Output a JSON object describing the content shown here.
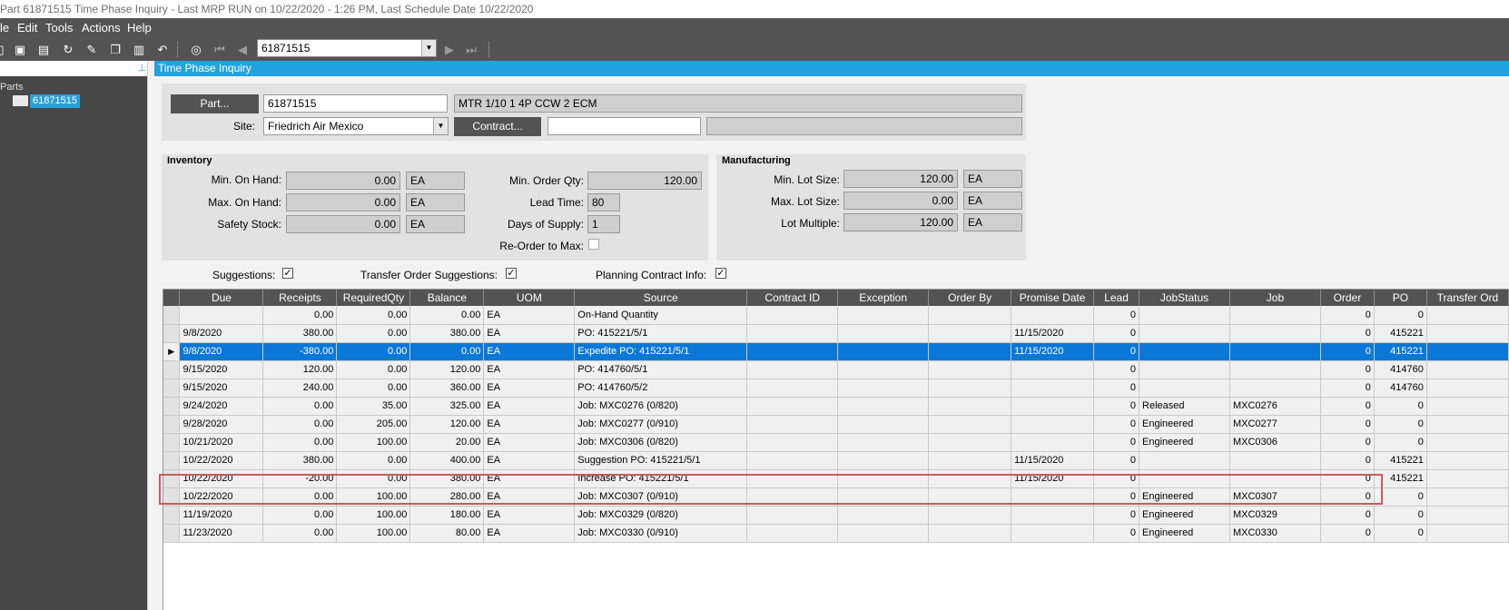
{
  "window": {
    "title": "Part 61871515 Time Phase Inquiry  - Last MRP RUN on 10/22/2020 - 1:26 PM, Last Schedule Date  10/22/2020"
  },
  "menu": [
    "le",
    "Edit",
    "Tools",
    "Actions",
    "Help"
  ],
  "toolbar": {
    "part_value": "61871515",
    "icons": [
      "doc-icon",
      "save-icon",
      "clipboard-icon",
      "refresh-icon",
      "broom-icon",
      "copy-icon",
      "paste-icon",
      "undo-icon",
      "binoculars-icon",
      "first-icon",
      "prev-icon",
      "next-icon",
      "last-icon"
    ]
  },
  "tree": {
    "root": "Parts",
    "node": "61871515"
  },
  "panel": {
    "title": "Time Phase Inquiry"
  },
  "header": {
    "part_button": "Part...",
    "part_value": "61871515",
    "part_desc": "MTR 1/10 1 4P CCW 2 ECM",
    "site_label": "Site:",
    "site_value": "Friedrich Air Mexico",
    "contract_button": "Contract...",
    "contract_value": "",
    "contract_desc": ""
  },
  "inventory": {
    "title": "Inventory",
    "min_on_hand_label": "Min. On Hand:",
    "min_on_hand": "0.00",
    "min_on_hand_uom": "EA",
    "max_on_hand_label": "Max. On Hand:",
    "max_on_hand": "0.00",
    "max_on_hand_uom": "EA",
    "safety_label": "Safety Stock:",
    "safety": "0.00",
    "safety_uom": "EA",
    "min_order_label": "Min. Order Qty:",
    "min_order": "120.00",
    "lead_label": "Lead Time:",
    "lead": "80",
    "days_label": "Days of Supply:",
    "days": "1",
    "reorder_label": "Re-Order to Max:",
    "reorder_checked": false
  },
  "manufacturing": {
    "title": "Manufacturing",
    "min_lot_label": "Min. Lot Size:",
    "min_lot": "120.00",
    "min_lot_uom": "EA",
    "max_lot_label": "Max. Lot Size:",
    "max_lot": "0.00",
    "max_lot_uom": "EA",
    "lot_mult_label": "Lot Multiple:",
    "lot_mult": "120.00",
    "lot_mult_uom": "EA"
  },
  "options": {
    "suggestions_label": "Suggestions:",
    "suggestions": true,
    "transfer_label": "Transfer Order Suggestions:",
    "transfer": true,
    "planning_label": "Planning Contract Info:",
    "planning": true
  },
  "grid": {
    "columns": [
      "Due",
      "Receipts",
      "RequiredQty",
      "Balance",
      "UOM",
      "Source",
      "Contract ID",
      "Exception",
      "Order By",
      "Promise Date",
      "Lead",
      "JobStatus",
      "Job",
      "Order",
      "PO",
      "Transfer Ord"
    ],
    "active_row": 2,
    "rows": [
      [
        "",
        "0.00",
        "0.00",
        "0.00",
        "EA",
        "On-Hand Quantity",
        "",
        "",
        "",
        "",
        "0",
        "",
        "",
        "0",
        "0",
        ""
      ],
      [
        "9/8/2020",
        "380.00",
        "0.00",
        "380.00",
        "EA",
        "PO: 415221/5/1",
        "",
        "",
        "",
        "11/15/2020",
        "0",
        "",
        "",
        "0",
        "415221",
        ""
      ],
      [
        "9/8/2020",
        "-380.00",
        "0.00",
        "0.00",
        "EA",
        "Expedite PO: 415221/5/1",
        "",
        "",
        "",
        "11/15/2020",
        "0",
        "",
        "",
        "0",
        "415221",
        ""
      ],
      [
        "9/15/2020",
        "120.00",
        "0.00",
        "120.00",
        "EA",
        "PO: 414760/5/1",
        "",
        "",
        "",
        "",
        "0",
        "",
        "",
        "0",
        "414760",
        ""
      ],
      [
        "9/15/2020",
        "240.00",
        "0.00",
        "360.00",
        "EA",
        "PO: 414760/5/2",
        "",
        "",
        "",
        "",
        "0",
        "",
        "",
        "0",
        "414760",
        ""
      ],
      [
        "9/24/2020",
        "0.00",
        "35.00",
        "325.00",
        "EA",
        "Job: MXC0276 (0/820)",
        "",
        "",
        "",
        "",
        "0",
        "Released",
        "MXC0276",
        "0",
        "0",
        ""
      ],
      [
        "9/28/2020",
        "0.00",
        "205.00",
        "120.00",
        "EA",
        "Job: MXC0277 (0/910)",
        "",
        "",
        "",
        "",
        "0",
        "Engineered",
        "MXC0277",
        "0",
        "0",
        ""
      ],
      [
        "10/21/2020",
        "0.00",
        "100.00",
        "20.00",
        "EA",
        "Job: MXC0306 (0/820)",
        "",
        "",
        "",
        "",
        "0",
        "Engineered",
        "MXC0306",
        "0",
        "0",
        ""
      ],
      [
        "10/22/2020",
        "380.00",
        "0.00",
        "400.00",
        "EA",
        "Suggestion PO: 415221/5/1",
        "",
        "",
        "",
        "11/15/2020",
        "0",
        "",
        "",
        "0",
        "415221",
        ""
      ],
      [
        "10/22/2020",
        "-20.00",
        "0.00",
        "380.00",
        "EA",
        "Increase PO: 415221/5/1",
        "",
        "",
        "",
        "11/15/2020",
        "0",
        "",
        "",
        "0",
        "415221",
        ""
      ],
      [
        "10/22/2020",
        "0.00",
        "100.00",
        "280.00",
        "EA",
        "Job: MXC0307 (0/910)",
        "",
        "",
        "",
        "",
        "0",
        "Engineered",
        "MXC0307",
        "0",
        "0",
        ""
      ],
      [
        "11/19/2020",
        "0.00",
        "100.00",
        "180.00",
        "EA",
        "Job: MXC0329 (0/820)",
        "",
        "",
        "",
        "",
        "0",
        "Engineered",
        "MXC0329",
        "0",
        "0",
        ""
      ],
      [
        "11/23/2020",
        "0.00",
        "100.00",
        "80.00",
        "EA",
        "Job: MXC0330 (0/910)",
        "",
        "",
        "",
        "",
        "0",
        "Engineered",
        "MXC0330",
        "0",
        "0",
        ""
      ]
    ]
  }
}
